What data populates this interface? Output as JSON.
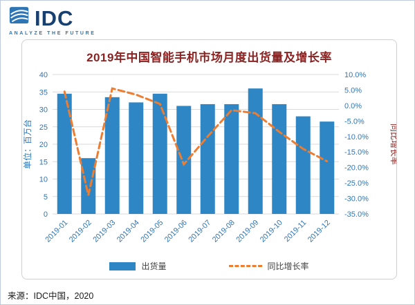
{
  "logo": {
    "text": "IDC",
    "tagline": "ANALYZE THE FUTURE"
  },
  "title": "2019年中国智能手机市场月度出货量及增长率",
  "source": "来源：IDC中国，2020",
  "legend": [
    {
      "label": "出货量",
      "marker": "bar"
    },
    {
      "label": "同比增长率",
      "marker": "dashed-line"
    }
  ],
  "chart_data": {
    "type": "bar+line",
    "categories": [
      "2019-01",
      "2019-02",
      "2019-03",
      "2019-04",
      "2019-05",
      "2019-06",
      "2019-07",
      "2019-08",
      "2019-09",
      "2019-10",
      "2019-11",
      "2019-12"
    ],
    "series": [
      {
        "name": "出货量",
        "type": "bar",
        "axis": "left",
        "color": "#2E86C5",
        "values": [
          34.5,
          16,
          33.5,
          32,
          34.5,
          31,
          31.5,
          31.5,
          36,
          31.5,
          28,
          26.5
        ]
      },
      {
        "name": "同比增长率",
        "type": "line",
        "style": "dashed",
        "axis": "right",
        "color": "#ED7D31",
        "values_percent": [
          4.5,
          -29,
          5.5,
          3.5,
          0.5,
          -19,
          -10,
          -1.5,
          -2.5,
          -8.5,
          -14,
          -18
        ]
      }
    ],
    "left_axis": {
      "title": "单位：百万台",
      "min": 0,
      "max": 40,
      "tick_step": 5,
      "ticks": [
        0,
        5,
        10,
        15,
        20,
        25,
        30,
        35,
        40
      ]
    },
    "right_axis": {
      "title": "同比增长率",
      "min": -35,
      "max": 10,
      "tick_step": 5,
      "tick_labels": [
        "10.0%",
        "5.0%",
        "0.0%",
        "-5.0%",
        "-10.0%",
        "-15.0%",
        "-20.0%",
        "-25.0%",
        "-30.0%",
        "-35.0%"
      ]
    },
    "grid": true,
    "legend_position": "bottom",
    "title": "2019年中国智能手机市场月度出货量及增长率"
  },
  "colors": {
    "title": "#8B2222",
    "axis_text": "#2E75B6",
    "bar": "#2E86C5",
    "line": "#ED7D31",
    "grid": "#D9D9D9",
    "logo_navy": "#173F6F",
    "tagline_blue": "#2E75B6"
  }
}
